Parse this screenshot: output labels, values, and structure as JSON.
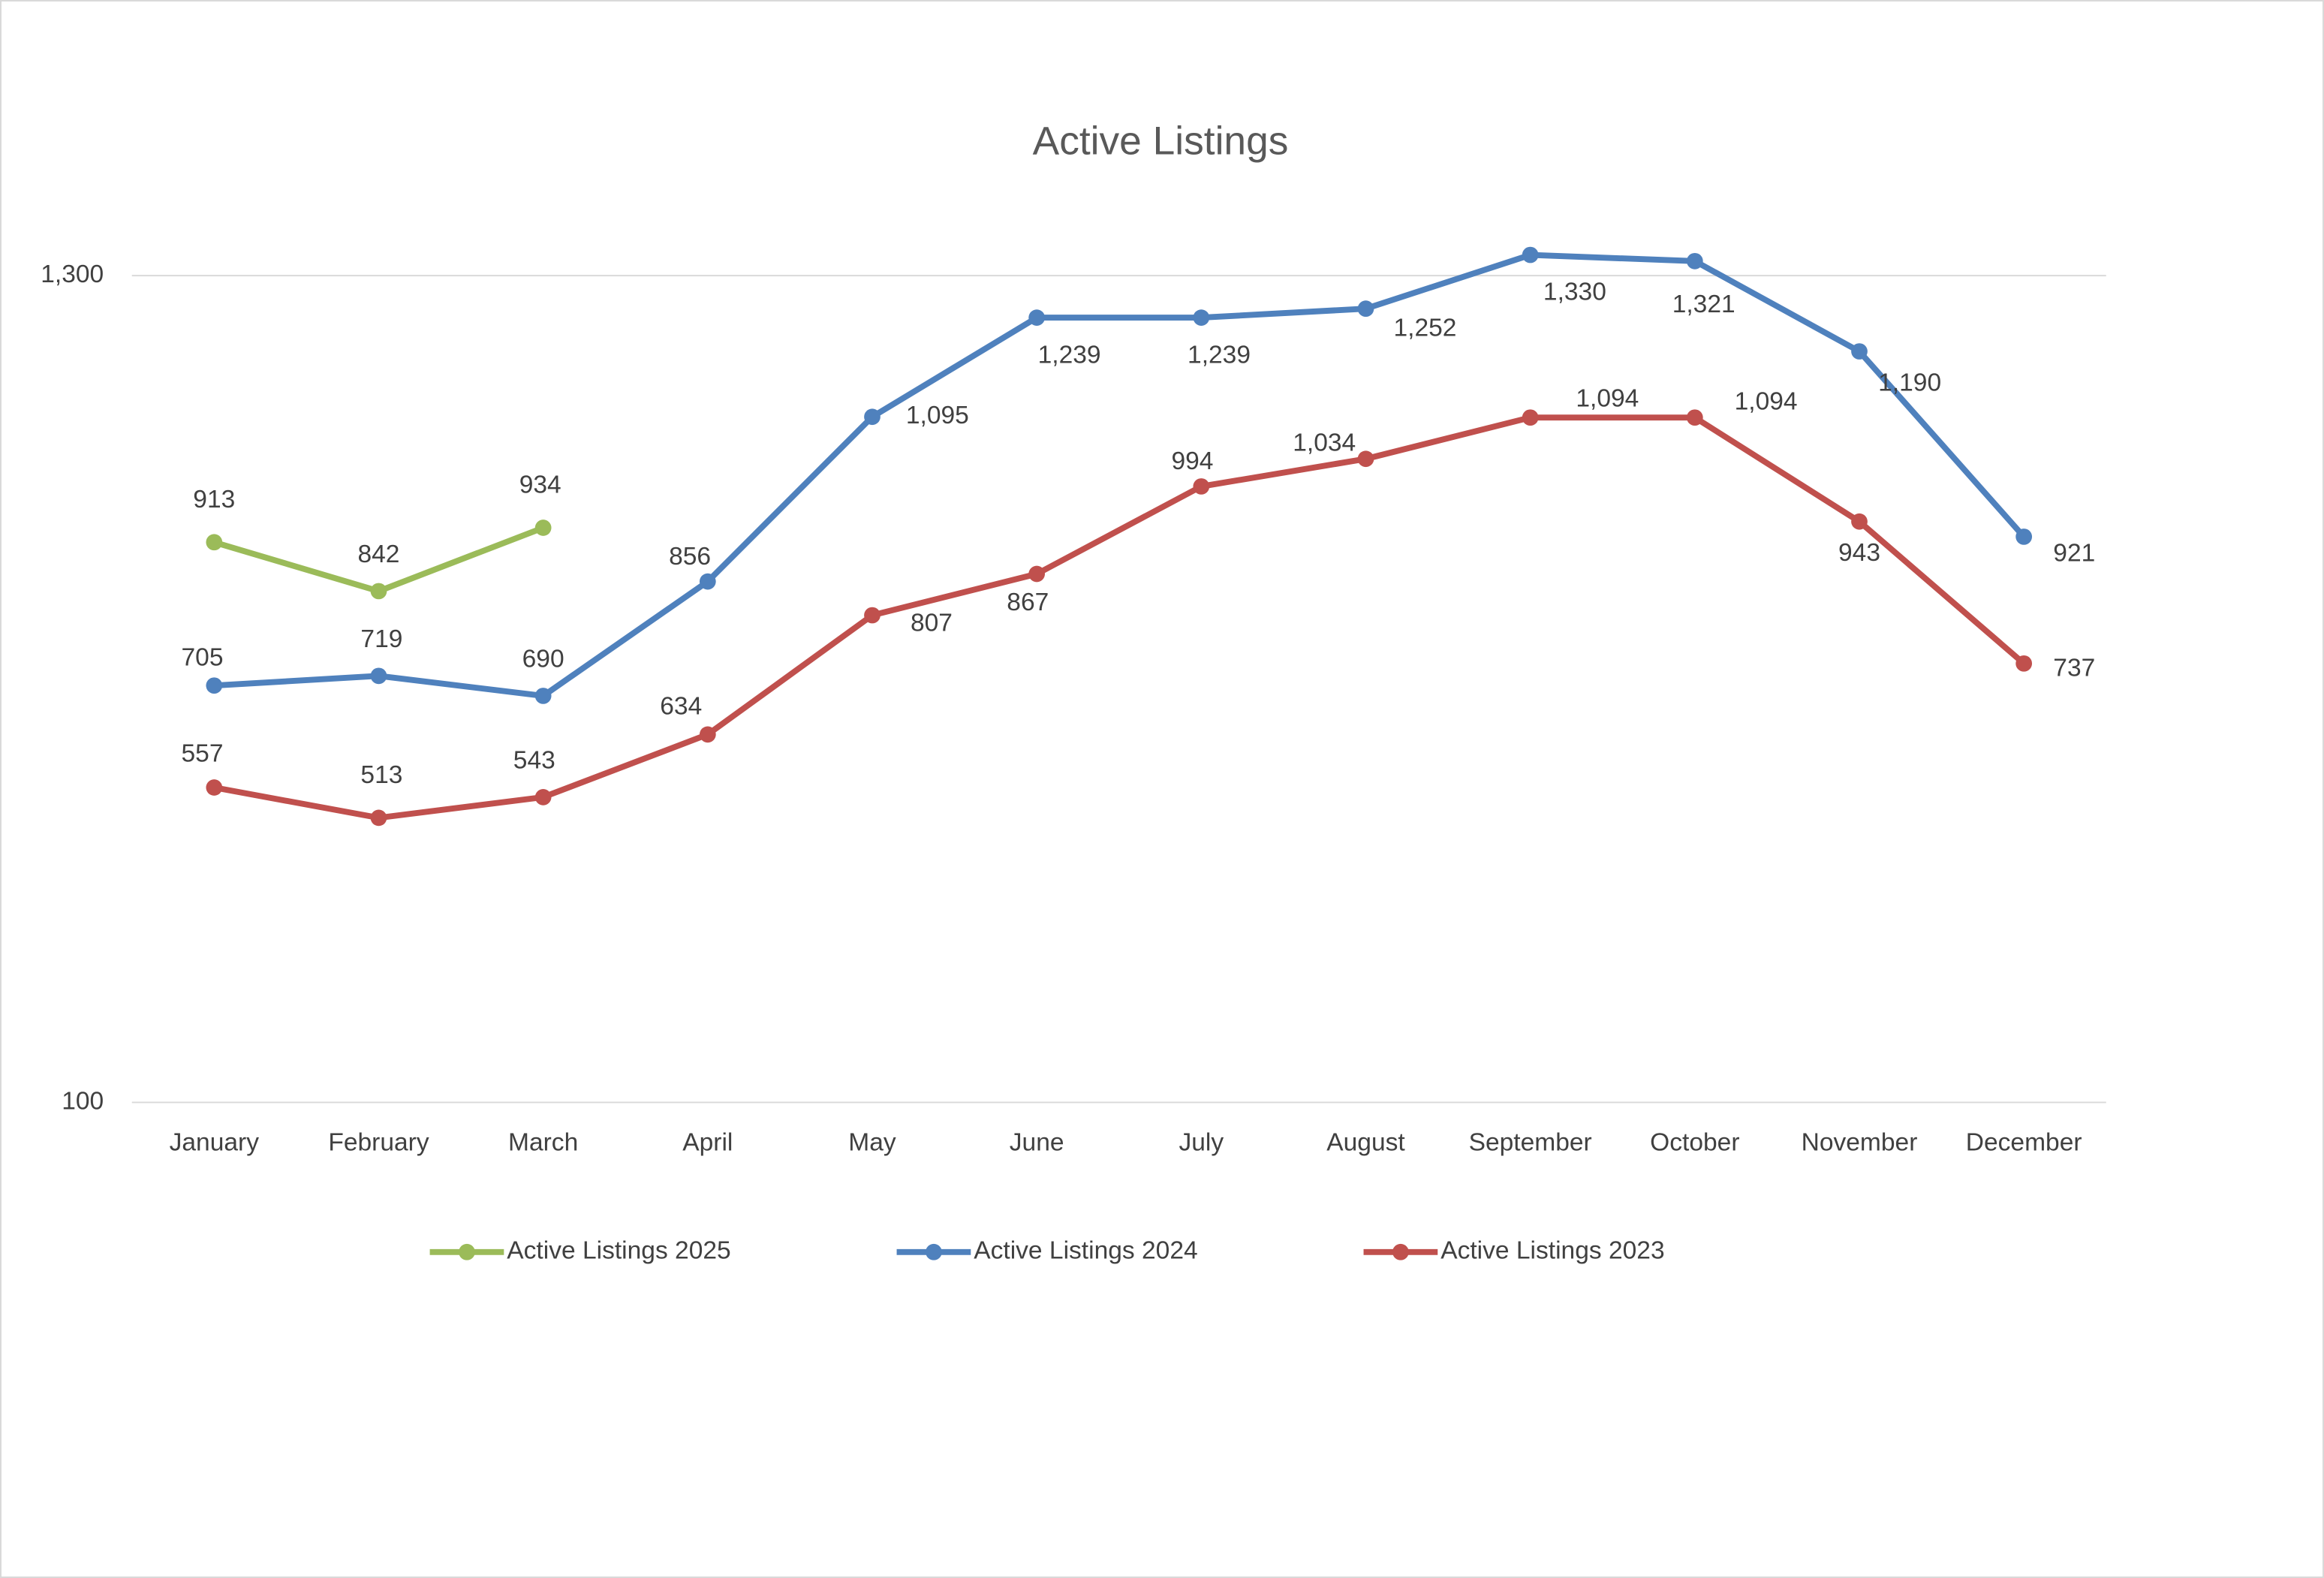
{
  "chart_data": {
    "type": "line",
    "title": "Active Listings",
    "categories": [
      "January",
      "February",
      "March",
      "April",
      "May",
      "June",
      "July",
      "August",
      "September",
      "October",
      "November",
      "December"
    ],
    "series": [
      {
        "name": "Active Listings 2025",
        "color": "#9bbb59",
        "values": [
          913,
          842,
          934,
          null,
          null,
          null,
          null,
          null,
          null,
          null,
          null,
          null
        ]
      },
      {
        "name": "Active Listings 2024",
        "color": "#4f81bd",
        "values": [
          705,
          719,
          690,
          856,
          1095,
          1239,
          1239,
          1252,
          1330,
          1321,
          1190,
          921
        ],
        "value_labels": [
          "705",
          "719",
          "690",
          "856",
          "1,095",
          "1,239",
          "1,239",
          "1,252",
          "1,330",
          "1,321",
          "1,190",
          "921"
        ]
      },
      {
        "name": "Active Listings 2023",
        "color": "#c0504d",
        "values": [
          557,
          513,
          543,
          634,
          807,
          867,
          994,
          1034,
          1094,
          1094,
          943,
          737
        ],
        "value_labels": [
          "557",
          "513",
          "543",
          "634",
          "807",
          "867",
          "994",
          "1,034",
          "1,094",
          "1,094",
          "943",
          "737"
        ]
      }
    ],
    "ylim": [
      100,
      1300
    ],
    "yticks": [
      100,
      {
        "value": 1300,
        "label": "1,300"
      }
    ],
    "grid": true,
    "legend": "bottom"
  }
}
